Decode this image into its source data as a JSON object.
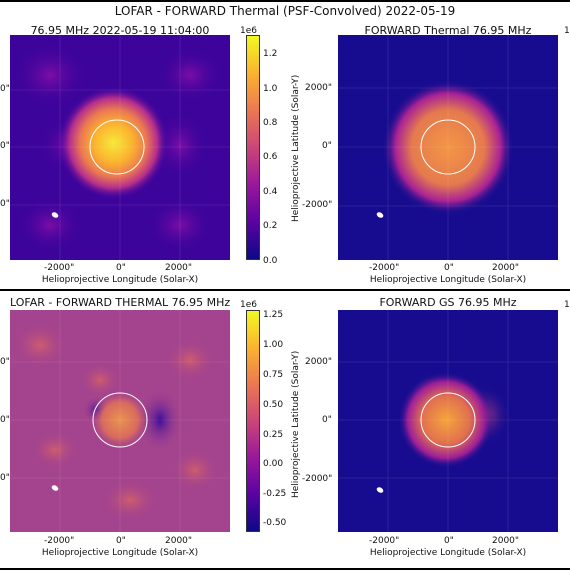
{
  "figure": {
    "suptitle": "LOFAR - FORWARD Thermal (PSF-Convolved) 2022-05-19"
  },
  "panels": {
    "p1": {
      "title": "76.95 MHz 2022-05-19 11:04:00"
    },
    "p2": {
      "title": "FORWARD Thermal 76.95 MHz"
    },
    "p3": {
      "title": "LOFAR - FORWARD THERMAL 76.95 MHz"
    },
    "p4": {
      "title": "FORWARD GS 76.95 MHz"
    }
  },
  "axes": {
    "xlabel": "Helioprojective Longitude (Solar-X)",
    "ylabel": "Helioprojective Latitude (Solar-Y)",
    "xticks": [
      "-2000\"",
      "0\"",
      "2000\""
    ],
    "yticks": [
      "2000\"",
      "0\"",
      "-2000\""
    ],
    "yticks_cut": [
      "0\"",
      "0\"",
      "0\""
    ]
  },
  "colorbars": {
    "top": {
      "exponent": "1e6",
      "ticks": [
        "1.2",
        "1.0",
        "0.8",
        "0.6",
        "0.4",
        "0.2",
        "0.0"
      ]
    },
    "bottom": {
      "exponent": "1e6",
      "ticks": [
        "1.25",
        "1.00",
        "0.75",
        "0.50",
        "0.25",
        "0.00",
        "-0.25",
        "-0.50"
      ]
    },
    "right_edge_exponent": "1"
  },
  "colors": {
    "colormap": [
      "#0d0887",
      "#5b02a3",
      "#9a179b",
      "#cb4678",
      "#eb7852",
      "#fbb32f",
      "#f0f921"
    ],
    "limb": "#ffffff",
    "beam": "#ffffff"
  },
  "chart_data": [
    {
      "type": "heatmap",
      "title": "76.95 MHz 2022-05-19 11:04:00",
      "xlabel": "Helioprojective Longitude (Solar-X)",
      "ylabel": "",
      "xlim": [
        -3900,
        3500
      ],
      "ylim": [
        -3900,
        3500
      ],
      "colorbar": {
        "label": "1e6",
        "range": [
          0.0,
          1.3
        ]
      },
      "sources": [
        {
          "x": -200,
          "y": 0,
          "peak": 1.25
        }
      ]
    },
    {
      "type": "heatmap",
      "title": "FORWARD Thermal 76.95 MHz",
      "xlabel": "Helioprojective Longitude (Solar-X)",
      "ylabel": "Helioprojective Latitude (Solar-Y)",
      "xlim": [
        -3900,
        3500
      ],
      "ylim": [
        -3900,
        3500
      ],
      "sources": [
        {
          "x": 0,
          "y": 0,
          "peak": 1.0
        }
      ]
    },
    {
      "type": "heatmap",
      "title": "LOFAR - FORWARD THERMAL 76.95 MHz",
      "xlabel": "Helioprojective Longitude (Solar-X)",
      "ylabel": "",
      "xlim": [
        -3900,
        3500
      ],
      "ylim": [
        -3900,
        3500
      ],
      "colorbar": {
        "label": "1e6",
        "range": [
          -0.6,
          1.3
        ]
      }
    },
    {
      "type": "heatmap",
      "title": "FORWARD GS 76.95 MHz",
      "xlabel": "Helioprojective Longitude (Solar-X)",
      "ylabel": "Helioprojective Latitude (Solar-Y)",
      "xlim": [
        -3900,
        3500
      ],
      "ylim": [
        -3900,
        3500
      ]
    }
  ]
}
